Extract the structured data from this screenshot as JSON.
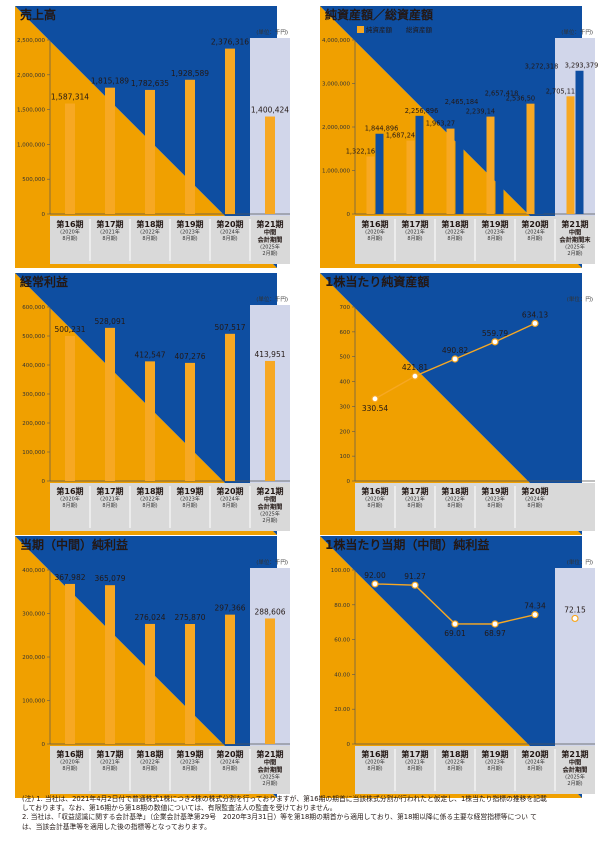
{
  "unit_label": "(単位：千円)",
  "unit_label_yen": "(単位：円)",
  "colors": {
    "bar": "#f7a823",
    "bar2": "#0e4ea1",
    "highlight": "#d1d6ea",
    "title_icon_dark": "#0e4ea1",
    "title_icon_light": "#f0a000",
    "line": "#f7a823"
  },
  "periods": [
    {
      "main": "第16期",
      "sub": [
        "(2020年",
        "8月期)"
      ]
    },
    {
      "main": "第17期",
      "sub": [
        "(2021年",
        "8月期)"
      ]
    },
    {
      "main": "第18期",
      "sub": [
        "(2022年",
        "8月期)"
      ]
    },
    {
      "main": "第19期",
      "sub": [
        "(2023年",
        "8月期)"
      ]
    },
    {
      "main": "第20期",
      "sub": [
        "(2024年",
        "8月期)"
      ]
    },
    {
      "main": "第21期",
      "main2": "中間",
      "main3": "会計期間",
      "sub": [
        "(2025年",
        "2月期)"
      ]
    }
  ],
  "chart_data": [
    {
      "id": "sales",
      "type": "bar",
      "title": "売上高",
      "ylim": [
        0,
        2500000
      ],
      "yticks": [
        0,
        500000,
        1000000,
        1500000,
        2000000,
        2500000
      ],
      "ytick_labels": [
        "0",
        "500,000",
        "1,000,000",
        "1,500,000",
        "2,000,000",
        "2,500,000"
      ],
      "categories": [
        "第16期",
        "第17期",
        "第18期",
        "第19期",
        "第20期",
        "第21期中間会計期間"
      ],
      "values": [
        1587314,
        1815189,
        1782635,
        1928589,
        2376316,
        1400424
      ],
      "value_labels": [
        "1,587,314",
        "1,815,189",
        "1,782,635",
        "1,928,589",
        "2,376,316",
        "1,400,424"
      ],
      "highlight_last": true
    },
    {
      "id": "assets",
      "type": "bar",
      "title": "純資産額／総資産額",
      "legend": [
        "純資産額",
        "総資産額"
      ],
      "ylim": [
        0,
        4000000
      ],
      "yticks": [
        0,
        1000000,
        2000000,
        3000000,
        4000000
      ],
      "ytick_labels": [
        "0",
        "1,000,000",
        "2,000,000",
        "3,000,000",
        "4,000,000"
      ],
      "categories": [
        "第16期",
        "第17期",
        "第18期",
        "第19期",
        "第20期",
        "第21期中間会計期間末"
      ],
      "last_category_lines": [
        "第21期",
        "中間",
        "会計期間末"
      ],
      "series": [
        {
          "name": "純資産額",
          "values": [
            1322167,
            1687246,
            1963271,
            2239141,
            2536508,
            2705115
          ],
          "value_labels": [
            "1,322,167",
            "1,687,246",
            "1,963,271",
            "2,239,141",
            "2,536,508",
            "2,705,115"
          ]
        },
        {
          "name": "総資産額",
          "values": [
            1844896,
            2256896,
            2465184,
            2657418,
            3272318,
            3293379
          ],
          "value_labels": [
            "1,844,896",
            "2,256,896",
            "2,465,184",
            "2,657,418",
            "3,272,318",
            "3,293,379"
          ]
        }
      ],
      "highlight_last": true
    },
    {
      "id": "ordinary",
      "type": "bar",
      "title": "経常利益",
      "ylim": [
        0,
        600000
      ],
      "yticks": [
        0,
        100000,
        200000,
        300000,
        400000,
        500000,
        600000
      ],
      "ytick_labels": [
        "0",
        "100,000",
        "200,000",
        "300,000",
        "400,000",
        "500,000",
        "600,000"
      ],
      "categories": [
        "第16期",
        "第17期",
        "第18期",
        "第19期",
        "第20期",
        "第21期中間会計期間"
      ],
      "values": [
        500231,
        528091,
        412547,
        407276,
        507517,
        413951
      ],
      "value_labels": [
        "500,231",
        "528,091",
        "412,547",
        "407,276",
        "507,517",
        "413,951"
      ],
      "highlight_last": true
    },
    {
      "id": "bps",
      "type": "line",
      "title": "1株当たり純資産額",
      "ylim": [
        0,
        700
      ],
      "yticks": [
        0,
        100,
        200,
        300,
        400,
        500,
        600,
        700
      ],
      "ytick_labels": [
        "0",
        "100",
        "200",
        "300",
        "400",
        "500",
        "600",
        "700"
      ],
      "categories": [
        "第16期",
        "第17期",
        "第18期",
        "第19期",
        "第20期"
      ],
      "values": [
        330.54,
        421.81,
        490.82,
        559.79,
        634.13
      ],
      "value_labels": [
        "330.54",
        "421.81",
        "490.82",
        "559.79",
        "634.13"
      ],
      "label_pos": [
        "below",
        "above",
        "above",
        "above",
        "above"
      ],
      "n_slots": 6,
      "highlight_last": false
    },
    {
      "id": "net",
      "type": "bar",
      "title": "当期（中間）純利益",
      "ylim": [
        0,
        400000
      ],
      "yticks": [
        0,
        100000,
        200000,
        300000,
        400000
      ],
      "ytick_labels": [
        "0",
        "100,000",
        "200,000",
        "300,000",
        "400,000"
      ],
      "categories": [
        "第16期",
        "第17期",
        "第18期",
        "第19期",
        "第20期",
        "第21期中間会計期間"
      ],
      "values": [
        367982,
        365079,
        276024,
        275870,
        297366,
        288606
      ],
      "value_labels": [
        "367,982",
        "365,079",
        "276,024",
        "275,870",
        "297,366",
        "288,606"
      ],
      "highlight_last": true
    },
    {
      "id": "eps",
      "type": "line",
      "title": "1株当たり当期（中間）純利益",
      "ylim": [
        0,
        100
      ],
      "yticks": [
        0,
        20,
        40,
        60,
        80,
        100
      ],
      "ytick_labels": [
        "0",
        "20.00",
        "40.00",
        "60.00",
        "80.00",
        "100.00"
      ],
      "categories": [
        "第16期",
        "第17期",
        "第18期",
        "第19期",
        "第20期",
        "第21期中間会計期間"
      ],
      "values": [
        92.0,
        91.27,
        69.01,
        68.97,
        74.34,
        72.15
      ],
      "value_labels": [
        "92.00",
        "91.27",
        "69.01",
        "68.97",
        "74.34",
        "72.15"
      ],
      "label_pos": [
        "above",
        "above",
        "below",
        "below",
        "above",
        "above"
      ],
      "n_slots": 6,
      "connect_last": false,
      "highlight_last": true
    }
  ],
  "notes": [
    "(注) 1. 当社は、2021年4月2日付で普通株式1株につき2株の株式分割を行っておりますが、第16期の期首に当該株式分割が行われたと仮定し、1株当たり指標の推移を記載",
    "         しております。なお、第16期から第18期の数値については、有限監査法人の監査を受けておりません。",
    "      2. 当社は、「収益認識に関する会計基準」（企業会計基準第29号　2020年3月31日）等を第18期の期首から適用しており、第18期以降に係る主要な経営指標等につい て",
    "         は、当該会計基準等を適用した後の指標等となっております。"
  ]
}
